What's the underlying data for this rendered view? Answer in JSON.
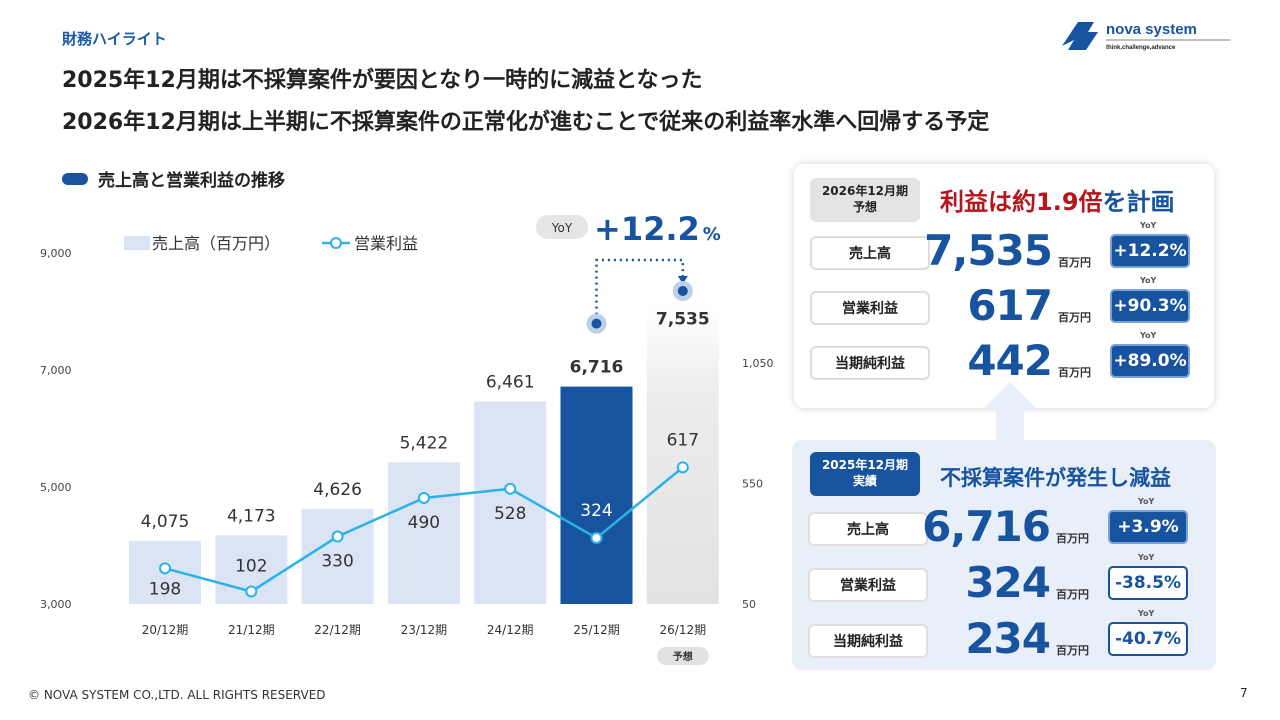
{
  "section": "財務ハイライト",
  "headline": [
    "2025年12月期は不採算案件が要因となり一時的に減益となった",
    "2026年12月期は上半期に不採算案件の正常化が進むことで従来の利益率水準へ回帰する予定"
  ],
  "logo": {
    "name": "nova system",
    "tagline": "think,challenge,advance"
  },
  "subhead": "売上高と営業利益の推移",
  "yoy_callout": {
    "label": "YoY",
    "value": "+12.2",
    "unit": "%"
  },
  "chart_data": {
    "type": "bar+line",
    "categories": [
      "20/12期",
      "21/12期",
      "22/12期",
      "23/12期",
      "24/12期",
      "25/12期",
      "26/12期"
    ],
    "forecast_tag": "予想",
    "series": [
      {
        "name": "売上高（百万円）",
        "type": "bar",
        "axis": "left",
        "values": [
          4075,
          4173,
          4626,
          5422,
          6461,
          6716,
          7535
        ],
        "labels": [
          "4,075",
          "4,173",
          "4,626",
          "5,422",
          "6,461",
          "6,716",
          "7,535"
        ]
      },
      {
        "name": "営業利益",
        "type": "line",
        "axis": "right",
        "values": [
          198,
          102,
          330,
          490,
          528,
          324,
          617
        ],
        "labels": [
          "198",
          "102",
          "330",
          "490",
          "528",
          "324",
          "617"
        ]
      }
    ],
    "left_axis": {
      "ylim": [
        3000,
        9000
      ],
      "ticks": [
        "3,000",
        "5,000",
        "7,000",
        "9,000"
      ],
      "tick_values": [
        3000,
        5000,
        7000,
        9000
      ]
    },
    "right_axis": {
      "ylim": [
        50,
        1550
      ],
      "ticks": [
        "50",
        "550",
        "1,050"
      ],
      "tick_values": [
        50,
        550,
        1050
      ]
    },
    "colors": {
      "bar": "#dbe4f4",
      "bar_highlight": "#17539e",
      "bar_forecast": "#e6e6e6",
      "line": "#29b3e6"
    },
    "legend": "top-left"
  },
  "forecast_card": {
    "period": "2026年12月期\n予想",
    "title_red": "利益は約1.9倍",
    "title_blue": "を計画",
    "rows": [
      {
        "label": "売上高",
        "value": "7,535",
        "unit": "百万円",
        "yoy_label": "YoY",
        "yoy": "+12.2%"
      },
      {
        "label": "営業利益",
        "value": "617",
        "unit": "百万円",
        "yoy_label": "YoY",
        "yoy": "+90.3%"
      },
      {
        "label": "当期純利益",
        "value": "442",
        "unit": "百万円",
        "yoy_label": "YoY",
        "yoy": "+89.0%"
      }
    ]
  },
  "actual_card": {
    "period": "2025年12月期\n実績",
    "title": "不採算案件が発生し減益",
    "rows": [
      {
        "label": "売上高",
        "value": "6,716",
        "unit": "百万円",
        "yoy_label": "YoY",
        "yoy": "+3.9%"
      },
      {
        "label": "営業利益",
        "value": "324",
        "unit": "百万円",
        "yoy_label": "YoY",
        "yoy": "-38.5%"
      },
      {
        "label": "当期純利益",
        "value": "234",
        "unit": "百万円",
        "yoy_label": "YoY",
        "yoy": "-40.7%"
      }
    ]
  },
  "footer": "© NOVA SYSTEM CO.,LTD. ALL RIGHTS RESERVED",
  "page": "7"
}
